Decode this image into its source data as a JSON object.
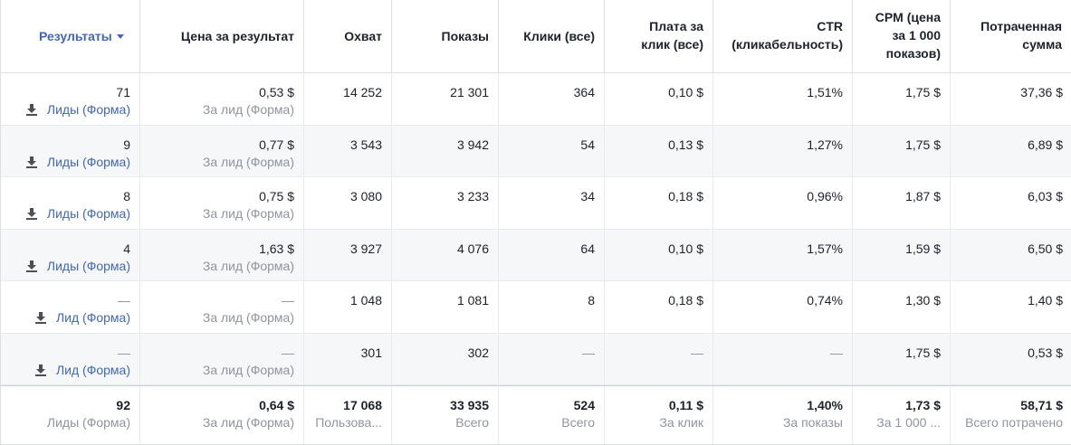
{
  "columns": {
    "results": "Результаты",
    "cost_per_result": "Цена за результат",
    "reach": "Охват",
    "impressions": "Показы",
    "clicks": "Клики (все)",
    "cpc_line1": "Плата за",
    "cpc_line2": "клик (все)",
    "ctr_line1": "CTR",
    "ctr_line2": "(кликабельность)",
    "cpm_line1": "CPM (цена",
    "cpm_line2": "за 1 000",
    "cpm_line3": "показов)",
    "spent_line1": "Потраченная",
    "spent_line2": "сумма"
  },
  "rows": [
    {
      "results": "71",
      "result_type": "Лиды (Форма)",
      "cost": "0,53 $",
      "cost_sub": "За лид (Форма)",
      "reach": "14 252",
      "impressions": "21 301",
      "clicks": "364",
      "cpc": "0,10 $",
      "ctr": "1,51%",
      "cpm": "1,75 $",
      "spent": "37,36 $"
    },
    {
      "results": "9",
      "result_type": "Лиды (Форма)",
      "cost": "0,77 $",
      "cost_sub": "За лид (Форма)",
      "reach": "3 543",
      "impressions": "3 942",
      "clicks": "54",
      "cpc": "0,13 $",
      "ctr": "1,27%",
      "cpm": "1,75 $",
      "spent": "6,89 $"
    },
    {
      "results": "8",
      "result_type": "Лиды (Форма)",
      "cost": "0,75 $",
      "cost_sub": "За лид (Форма)",
      "reach": "3 080",
      "impressions": "3 233",
      "clicks": "34",
      "cpc": "0,18 $",
      "ctr": "0,96%",
      "cpm": "1,87 $",
      "spent": "6,03 $"
    },
    {
      "results": "4",
      "result_type": "Лиды (Форма)",
      "cost": "1,63 $",
      "cost_sub": "За лид (Форма)",
      "reach": "3 927",
      "impressions": "4 076",
      "clicks": "64",
      "cpc": "0,10 $",
      "ctr": "1,57%",
      "cpm": "1,59 $",
      "spent": "6,50 $"
    },
    {
      "results": "—",
      "result_type": "Лид (Форма)",
      "cost": "—",
      "cost_sub": "За лид (Форма)",
      "reach": "1 048",
      "impressions": "1 081",
      "clicks": "8",
      "cpc": "0,18 $",
      "ctr": "0,74%",
      "cpm": "1,30 $",
      "spent": "1,40 $"
    },
    {
      "results": "—",
      "result_type": "Лид (Форма)",
      "cost": "—",
      "cost_sub": "За лид (Форма)",
      "reach": "301",
      "impressions": "302",
      "clicks": "—",
      "cpc": "—",
      "ctr": "—",
      "cpm": "1,75 $",
      "spent": "0,53 $"
    }
  ],
  "totals": {
    "results": "92",
    "results_sub": "Лиды (Форма)",
    "cost": "0,64 $",
    "cost_sub": "За лид (Форма)",
    "reach": "17 068",
    "reach_sub": "Пользова...",
    "impressions": "33 935",
    "impressions_sub": "Всего",
    "clicks": "524",
    "clicks_sub": "Всего",
    "cpc": "0,11 $",
    "cpc_sub": "За клик",
    "ctr": "1,40%",
    "ctr_sub": "За показы",
    "cpm": "1,73 $",
    "cpm_sub": "За 1 000 ...",
    "spent": "58,71 $",
    "spent_sub": "Всего потрачено"
  },
  "colors": {
    "link": "#4267b2",
    "muted": "#90949c",
    "alt_row": "#f6f7f9"
  },
  "icons": {
    "result_type": "download-icon",
    "sort": "caret-down-icon"
  }
}
